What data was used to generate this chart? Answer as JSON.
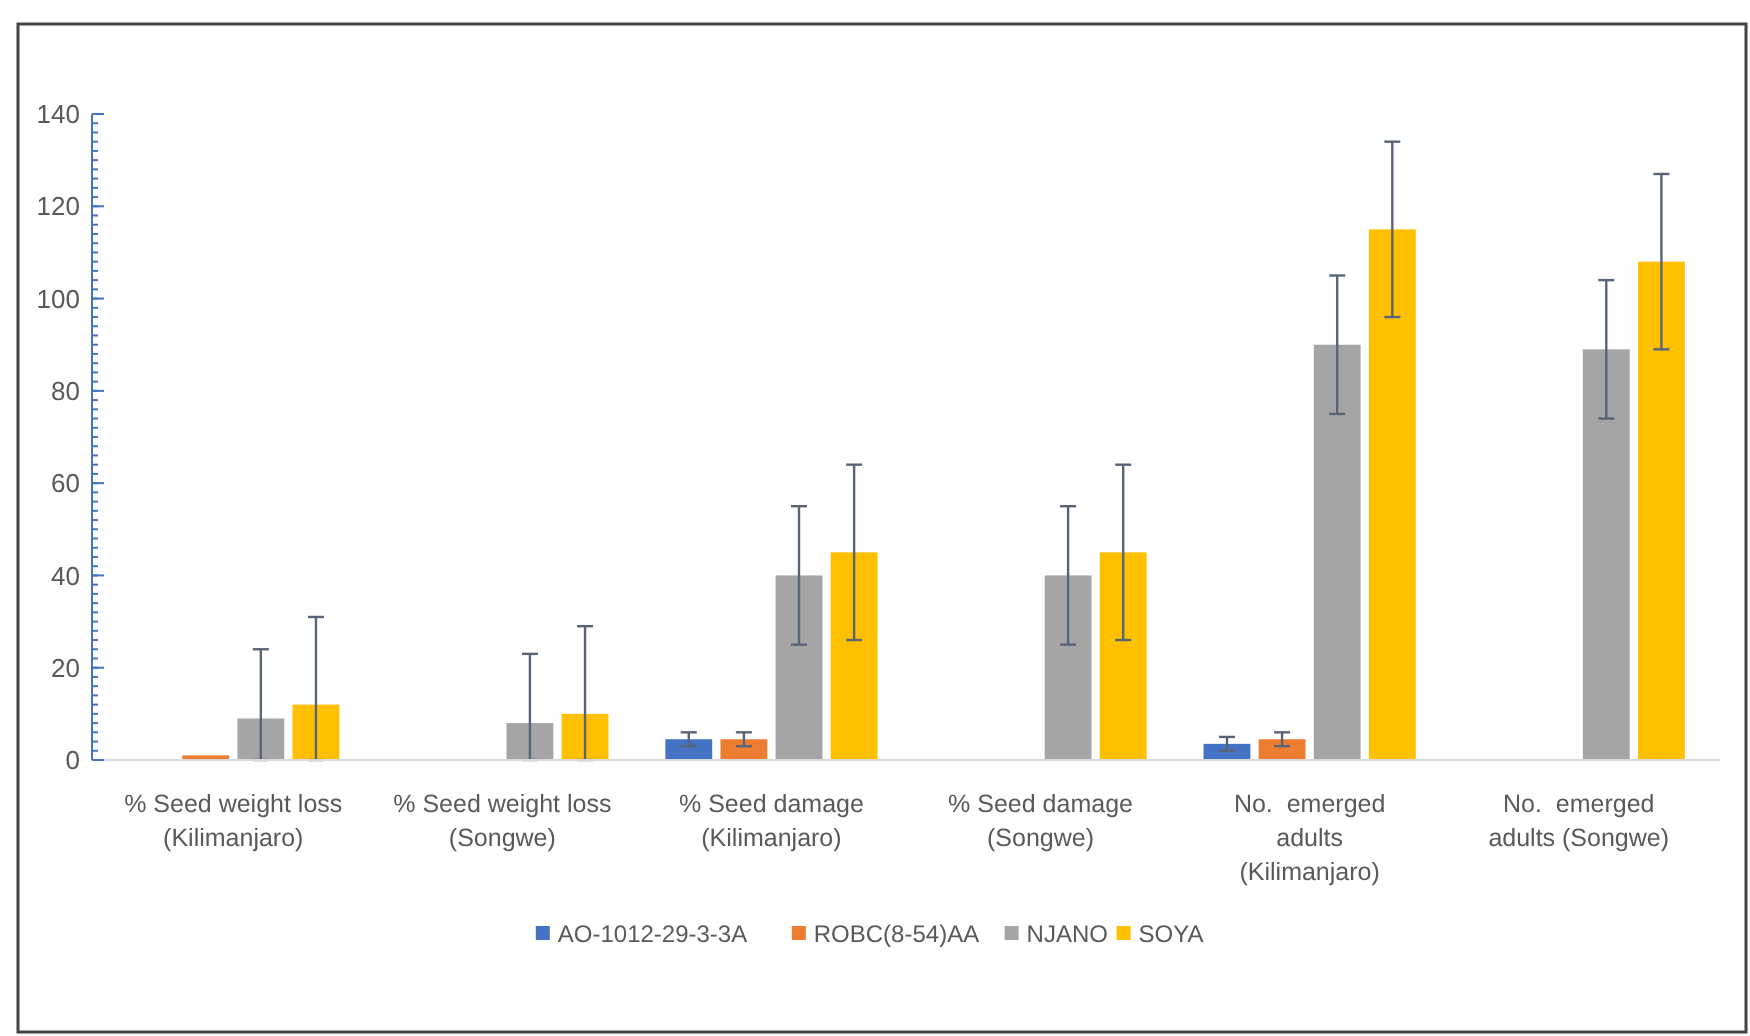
{
  "chart_data": {
    "type": "bar",
    "categories": [
      "% Seed weight loss (Kilimanjaro)",
      "% Seed weight loss (Songwe)",
      "% Seed damage (Kilimanjaro)",
      "% Seed damage (Songwe)",
      "No.  emerged adults (Kilimanjaro)",
      "No.  emerged adults (Songwe)"
    ],
    "series": [
      {
        "name": "AO-1012-29-3-3A",
        "color": "#4472c4",
        "values": [
          0,
          0,
          4.5,
          0,
          3.5,
          0
        ],
        "errors": [
          null,
          null,
          1.5,
          null,
          1.5,
          null
        ]
      },
      {
        "name": "ROBC(8-54)AA",
        "color": "#ed7d31",
        "values": [
          1,
          0,
          4.5,
          0,
          4.5,
          0
        ],
        "errors": [
          null,
          null,
          1.5,
          null,
          1.5,
          null
        ]
      },
      {
        "name": "NJANO",
        "color": "#a5a5a5",
        "values": [
          9,
          8,
          40,
          40,
          90,
          89
        ],
        "errors": [
          [
            0,
            24
          ],
          [
            0,
            23
          ],
          15,
          15,
          15,
          15
        ]
      },
      {
        "name": "SOYA",
        "color": "#ffc000",
        "values": [
          12,
          10,
          45,
          45,
          115,
          108
        ],
        "errors": [
          [
            0,
            31
          ],
          [
            0,
            29
          ],
          19,
          19,
          19,
          19
        ]
      }
    ],
    "ylim": [
      0,
      140
    ],
    "yticks": [
      0,
      20,
      40,
      60,
      80,
      100,
      120,
      140
    ],
    "grid": false,
    "legend": "bottom"
  }
}
